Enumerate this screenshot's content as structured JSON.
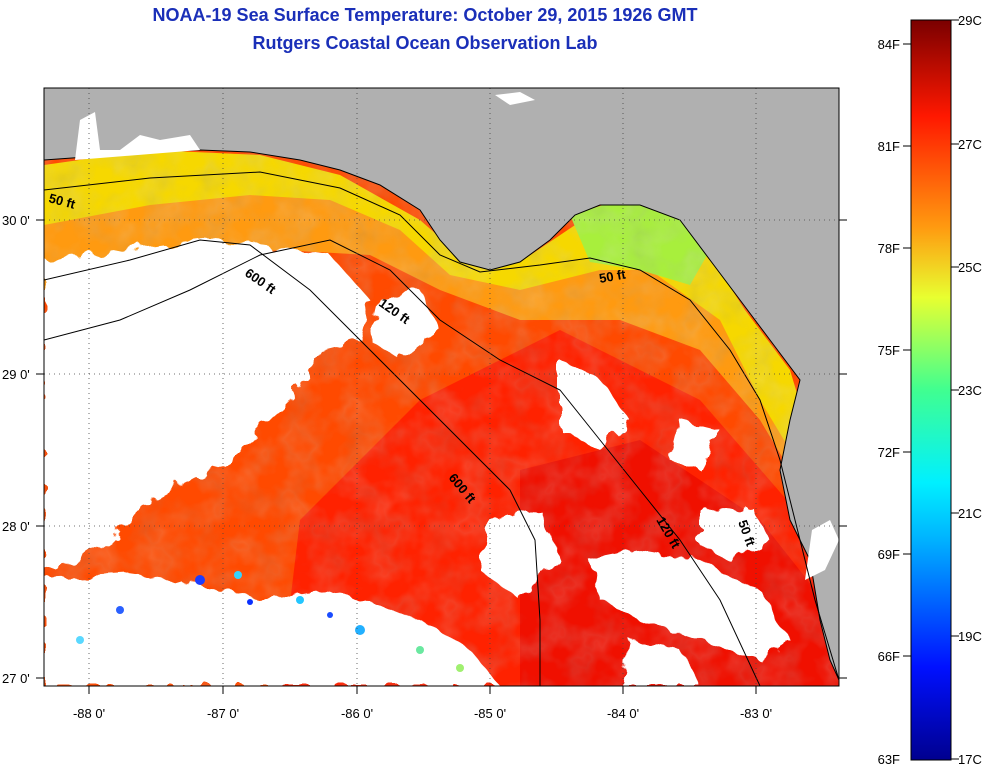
{
  "title": "NOAA-19 Sea Surface Temperature:  October 29, 2015 1926 GMT",
  "subtitle": "Rutgers Coastal Ocean Observation Lab",
  "lat_labels": [
    "30 0'",
    "29 0'",
    "28 0'",
    "27 0'"
  ],
  "lon_labels": [
    "-88 0'",
    "-87 0'",
    "-86 0'",
    "-85 0'",
    "-84 0'",
    "-83 0'"
  ],
  "contour_labels": [
    "50 ft",
    "600 ft",
    "120 ft",
    "50 ft",
    "600 ft",
    "120 ft",
    "50 ft"
  ],
  "colorbar": {
    "fahrenheit": [
      "84F",
      "81F",
      "78F",
      "75F",
      "72F",
      "69F",
      "66F",
      "63F"
    ],
    "celsius": [
      "29C",
      "27C",
      "25C",
      "23C",
      "21C",
      "19C",
      "17C"
    ]
  },
  "colors": {
    "title": "#1a2fb8",
    "land": "#b0b0b0",
    "cloud": "#ffffff"
  }
}
